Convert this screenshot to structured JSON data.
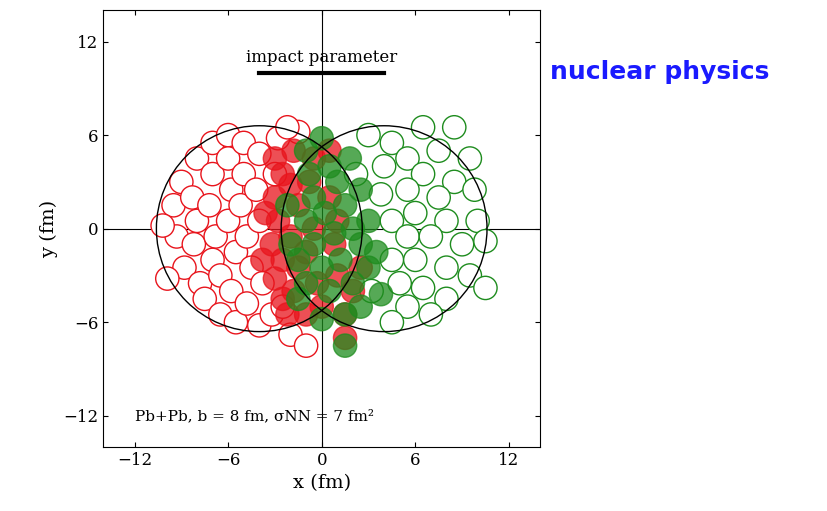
{
  "chart_data": {
    "type": "scatter",
    "xlabel": "x (fm)",
    "ylabel": "y (fm)",
    "xlim": [
      -14,
      14
    ],
    "ylim": [
      -14,
      14
    ],
    "xticks": [
      {
        "value": -12,
        "label": "−12"
      },
      {
        "value": -6,
        "label": "−6"
      },
      0,
      6,
      12
    ],
    "yticks": [
      {
        "value": -12,
        "label": "−12"
      },
      {
        "value": -6,
        "label": "−6"
      },
      0,
      6,
      12
    ],
    "grid": false,
    "axis_lines": {
      "x": 0,
      "y": 0
    },
    "sigma_nn": 7,
    "nuclei": [
      {
        "center": [
          -4,
          0
        ],
        "radius": 6.6
      },
      {
        "center": [
          4,
          0
        ],
        "radius": 6.6
      }
    ],
    "impact_parameter": {
      "label": "impact parameter",
      "b": 8,
      "y": 10
    },
    "annotations": [
      {
        "text": "Pb+Pb, b = 8 fm, σNN = 7 fm²",
        "x": -12,
        "y": -12
      },
      {
        "text": "nuclear physics",
        "color": "#1a1aff"
      }
    ],
    "series": [
      {
        "color": "#e8141c",
        "marker": "open_circle",
        "values": [
          [
            -9.5,
            1.5
          ],
          [
            -9,
            3
          ],
          [
            -9.3,
            -0.5
          ],
          [
            -8.8,
            -2.5
          ],
          [
            -9.9,
            -3.2
          ],
          [
            -10.2,
            0.2
          ],
          [
            -8,
            4.5
          ],
          [
            -8.3,
            2
          ],
          [
            -8,
            0.5
          ],
          [
            -8.2,
            -1
          ],
          [
            -7.8,
            -3.5
          ],
          [
            -7.5,
            -4.5
          ],
          [
            -7,
            5.5
          ],
          [
            -7,
            3.5
          ],
          [
            -7.2,
            1.5
          ],
          [
            -6.8,
            -0.5
          ],
          [
            -7,
            -2
          ],
          [
            -6.5,
            -3
          ],
          [
            -6.5,
            -5.5
          ],
          [
            -6,
            6
          ],
          [
            -6,
            4.5
          ],
          [
            -5.8,
            2.5
          ],
          [
            -6,
            0.5
          ],
          [
            -5.5,
            -1.5
          ],
          [
            -5.8,
            -4
          ],
          [
            -5.5,
            -6
          ],
          [
            -5,
            5.5
          ],
          [
            -5,
            3.5
          ],
          [
            -5.2,
            1.5
          ],
          [
            -4.8,
            -0.5
          ],
          [
            -4.5,
            -2.5
          ],
          [
            -4.8,
            -4.8
          ],
          [
            -4,
            -6.2
          ],
          [
            -4,
            4.8
          ],
          [
            -4.2,
            2.5
          ],
          [
            -4,
            0.5
          ],
          [
            -3.8,
            -3.5
          ],
          [
            -3.2,
            -5.5
          ],
          [
            -2.8,
            5.8
          ],
          [
            -3,
            3.5
          ],
          [
            -2.5,
            -5
          ],
          [
            -2,
            -6.8
          ],
          [
            -1.5,
            6.2
          ],
          [
            -1,
            -7.5
          ],
          [
            -2.2,
            6.5
          ]
        ]
      },
      {
        "color": "#1e8c1e",
        "marker": "open_circle",
        "values": [
          [
            3,
            6
          ],
          [
            4.5,
            5.5
          ],
          [
            6.5,
            6.5
          ],
          [
            8.5,
            6.5
          ],
          [
            5.5,
            4.5
          ],
          [
            7.5,
            5
          ],
          [
            9.5,
            4.5
          ],
          [
            4,
            4
          ],
          [
            6.5,
            3.5
          ],
          [
            8.5,
            3
          ],
          [
            3.8,
            2.2
          ],
          [
            5.5,
            2.5
          ],
          [
            7.5,
            2
          ],
          [
            9.8,
            2.5
          ],
          [
            4.5,
            0.5
          ],
          [
            6,
            1
          ],
          [
            8,
            0.5
          ],
          [
            10,
            0.5
          ],
          [
            5.5,
            -0.5
          ],
          [
            7,
            -0.5
          ],
          [
            9,
            -1
          ],
          [
            10.5,
            -0.8
          ],
          [
            4.5,
            -2
          ],
          [
            6,
            -2
          ],
          [
            8,
            -2.5
          ],
          [
            9.5,
            -3
          ],
          [
            5,
            -3.5
          ],
          [
            6.5,
            -3.8
          ],
          [
            8,
            -4.5
          ],
          [
            5.5,
            -5
          ],
          [
            7,
            -5.5
          ],
          [
            4.5,
            -6
          ],
          [
            3.2,
            -4
          ],
          [
            10.5,
            -3.8
          ],
          [
            2.2,
            3.5
          ]
        ]
      },
      {
        "color": "#e8141c",
        "marker": "filled_circle",
        "values": [
          [
            -3,
            4.5
          ],
          [
            -2.5,
            3.5
          ],
          [
            -3,
            2
          ],
          [
            -2.8,
            0.5
          ],
          [
            -3.2,
            -1
          ],
          [
            -2.5,
            -2
          ],
          [
            -3,
            -3.2
          ],
          [
            -2.5,
            -4.5
          ],
          [
            -1.8,
            5
          ],
          [
            -2,
            2.8
          ],
          [
            -1.5,
            1.5
          ],
          [
            -2,
            -0.5
          ],
          [
            -1.5,
            -2.5
          ],
          [
            -1.8,
            -4
          ],
          [
            -1,
            -5.5
          ],
          [
            -0.5,
            4.5
          ],
          [
            -0.8,
            3
          ],
          [
            -0.5,
            0
          ],
          [
            -1,
            -1.5
          ],
          [
            -0.3,
            -3.5
          ],
          [
            0,
            -5
          ],
          [
            0.5,
            2
          ],
          [
            0.8,
            -1
          ],
          [
            1,
            -3
          ],
          [
            1.5,
            -5.5
          ],
          [
            1.5,
            -7
          ],
          [
            2,
            -4
          ],
          [
            1,
            0.5
          ],
          [
            -3.8,
            -2
          ],
          [
            -3.6,
            1
          ],
          [
            0.5,
            5
          ],
          [
            2.5,
            -2.5
          ],
          [
            -2.2,
            -5.5
          ]
        ]
      },
      {
        "color": "#1e8c1e",
        "marker": "filled_circle",
        "values": [
          [
            0,
            5.8
          ],
          [
            -1,
            5
          ],
          [
            0.5,
            4
          ],
          [
            1,
            3
          ],
          [
            -0.5,
            2
          ],
          [
            0.2,
            1
          ],
          [
            1.5,
            1.5
          ],
          [
            -1,
            0.5
          ],
          [
            -0.5,
            -1
          ],
          [
            0.8,
            -0.3
          ],
          [
            2,
            0
          ],
          [
            -1.5,
            -2
          ],
          [
            0,
            -2.5
          ],
          [
            1.2,
            -2
          ],
          [
            2.5,
            -1
          ],
          [
            -1,
            -3.5
          ],
          [
            0.5,
            -4
          ],
          [
            2,
            -3.5
          ],
          [
            3,
            -2.5
          ],
          [
            -1.5,
            -4.5
          ],
          [
            0,
            -5.8
          ],
          [
            1.5,
            -5.5
          ],
          [
            1.5,
            -7.5
          ],
          [
            3.5,
            -1.5
          ],
          [
            3,
            0.5
          ],
          [
            2.5,
            2.5
          ],
          [
            -2,
            -1
          ],
          [
            -2.2,
            1.5
          ],
          [
            -0.8,
            3.5
          ],
          [
            1.8,
            4.5
          ],
          [
            3.8,
            -4.2
          ],
          [
            2.5,
            -5
          ]
        ]
      }
    ]
  }
}
